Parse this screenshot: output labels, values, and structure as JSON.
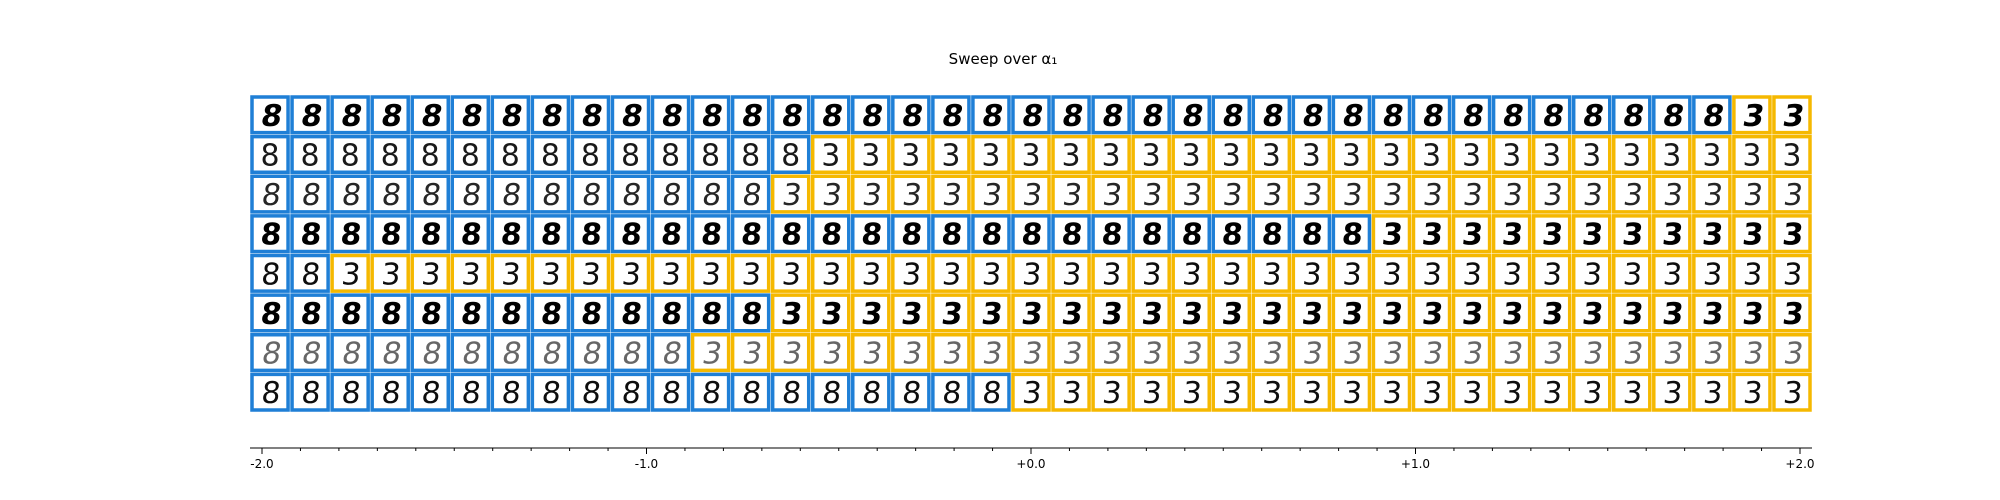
{
  "chart_data": {
    "type": "heatmap",
    "title": "Sweep over α₁",
    "subtitle": "",
    "xlabel": "",
    "ylabel": "",
    "x_range": [
      -2.0,
      2.0
    ],
    "x_tick_labels": [
      "-2.0",
      "-1.0",
      "+0.0",
      "+1.0",
      "+2.0"
    ],
    "x_tick_values": [
      -2.0,
      -1.0,
      0.0,
      1.0,
      2.0
    ],
    "columns": 39,
    "rows": 8,
    "class_a": {
      "label": "8",
      "color": "#1f7fd6"
    },
    "class_b": {
      "label": "3",
      "color": "#f5b800"
    },
    "switch_column_per_row": [
      37,
      14,
      13,
      28,
      2,
      13,
      11,
      19
    ],
    "row_digit_style": [
      {
        "weight": "bold",
        "slant": -10,
        "opacity": 1.0
      },
      {
        "weight": "normal",
        "slant": 0,
        "opacity": 0.9
      },
      {
        "weight": "normal",
        "slant": -8,
        "opacity": 0.85
      },
      {
        "weight": "bold",
        "slant": -6,
        "opacity": 1.0
      },
      {
        "weight": "normal",
        "slant": -5,
        "opacity": 0.95
      },
      {
        "weight": "bold",
        "slant": -7,
        "opacity": 1.0
      },
      {
        "weight": "normal",
        "slant": -10,
        "opacity": 0.6
      },
      {
        "weight": "normal",
        "slant": -6,
        "opacity": 0.95
      }
    ],
    "grid": false,
    "legend": "none"
  }
}
